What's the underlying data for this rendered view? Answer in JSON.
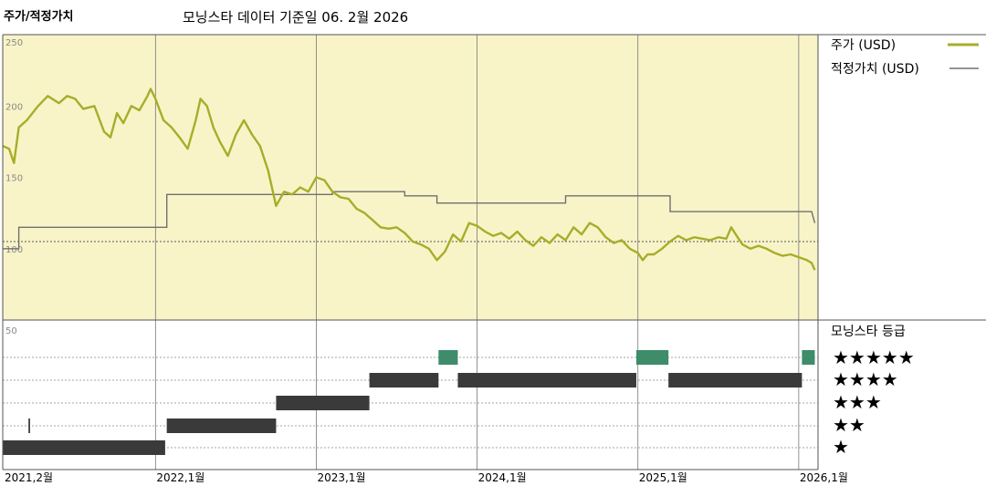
{
  "header": {
    "title": "주가/적정가치",
    "subtitle": "모닝스타 데이터 기준일 06. 2월 2026"
  },
  "legend": {
    "price_label": "주가 (USD)",
    "fair_label": "적정가치 (USD)",
    "rating_title": "모닝스타 등급",
    "star_rows": [
      "★★★★★",
      "★★★★",
      "★★★",
      "★★",
      "★"
    ]
  },
  "colors": {
    "panel_bg": "#f8f4c8",
    "price_line": "#a8ad2a",
    "fair_line": "#707070",
    "rating_dark": "#3a3a3a",
    "rating_five": "#3e8c6a",
    "grid": "#666666"
  },
  "chart_data": {
    "type": "line",
    "y_ticks": [
      "250",
      "200",
      "150",
      "100"
    ],
    "ylim": [
      50,
      250
    ],
    "reference_line": 105,
    "x_ticks": [
      {
        "label": "2021,2월",
        "t": 2021.08
      },
      {
        "label": "2022,1월",
        "t": 2022.0
      },
      {
        "label": "2023,1월",
        "t": 2023.0
      },
      {
        "label": "2024,1월",
        "t": 2024.0
      },
      {
        "label": "2025,1월",
        "t": 2025.0
      },
      {
        "label": "2026,1월",
        "t": 2026.0
      }
    ],
    "xlim": [
      2021.05,
      2026.12
    ],
    "series": [
      {
        "name": "주가 (USD)",
        "points": [
          [
            2021.05,
            172
          ],
          [
            2021.09,
            170
          ],
          [
            2021.12,
            160
          ],
          [
            2021.15,
            185
          ],
          [
            2021.2,
            190
          ],
          [
            2021.27,
            200
          ],
          [
            2021.33,
            207
          ],
          [
            2021.4,
            202
          ],
          [
            2021.45,
            207
          ],
          [
            2021.5,
            205
          ],
          [
            2021.55,
            198
          ],
          [
            2021.62,
            200
          ],
          [
            2021.68,
            182
          ],
          [
            2021.72,
            178
          ],
          [
            2021.76,
            195
          ],
          [
            2021.8,
            188
          ],
          [
            2021.85,
            200
          ],
          [
            2021.9,
            197
          ],
          [
            2021.95,
            207
          ],
          [
            2021.97,
            212
          ],
          [
            2022.0,
            205
          ],
          [
            2022.05,
            190
          ],
          [
            2022.1,
            185
          ],
          [
            2022.15,
            178
          ],
          [
            2022.2,
            170
          ],
          [
            2022.25,
            190
          ],
          [
            2022.28,
            205
          ],
          [
            2022.32,
            200
          ],
          [
            2022.36,
            185
          ],
          [
            2022.4,
            175
          ],
          [
            2022.45,
            165
          ],
          [
            2022.5,
            180
          ],
          [
            2022.55,
            190
          ],
          [
            2022.6,
            180
          ],
          [
            2022.65,
            172
          ],
          [
            2022.7,
            155
          ],
          [
            2022.75,
            130
          ],
          [
            2022.8,
            140
          ],
          [
            2022.85,
            138
          ],
          [
            2022.9,
            143
          ],
          [
            2022.95,
            140
          ],
          [
            2023.0,
            150
          ],
          [
            2023.05,
            148
          ],
          [
            2023.1,
            140
          ],
          [
            2023.15,
            136
          ],
          [
            2023.2,
            135
          ],
          [
            2023.25,
            128
          ],
          [
            2023.3,
            125
          ],
          [
            2023.35,
            120
          ],
          [
            2023.4,
            115
          ],
          [
            2023.45,
            114
          ],
          [
            2023.5,
            115
          ],
          [
            2023.55,
            111
          ],
          [
            2023.6,
            105
          ],
          [
            2023.65,
            103
          ],
          [
            2023.7,
            100
          ],
          [
            2023.75,
            92
          ],
          [
            2023.8,
            98
          ],
          [
            2023.85,
            110
          ],
          [
            2023.9,
            105
          ],
          [
            2023.95,
            118
          ],
          [
            2024.0,
            116
          ],
          [
            2024.05,
            112
          ],
          [
            2024.1,
            109
          ],
          [
            2024.15,
            111
          ],
          [
            2024.2,
            107
          ],
          [
            2024.25,
            112
          ],
          [
            2024.3,
            106
          ],
          [
            2024.35,
            102
          ],
          [
            2024.4,
            108
          ],
          [
            2024.45,
            104
          ],
          [
            2024.5,
            110
          ],
          [
            2024.55,
            106
          ],
          [
            2024.6,
            115
          ],
          [
            2024.65,
            110
          ],
          [
            2024.7,
            118
          ],
          [
            2024.75,
            115
          ],
          [
            2024.8,
            108
          ],
          [
            2024.85,
            104
          ],
          [
            2024.9,
            106
          ],
          [
            2024.95,
            100
          ],
          [
            2025.0,
            97
          ],
          [
            2025.03,
            92
          ],
          [
            2025.06,
            96
          ],
          [
            2025.1,
            96
          ],
          [
            2025.15,
            100
          ],
          [
            2025.2,
            105
          ],
          [
            2025.25,
            109
          ],
          [
            2025.3,
            106
          ],
          [
            2025.35,
            108
          ],
          [
            2025.4,
            107
          ],
          [
            2025.45,
            106
          ],
          [
            2025.5,
            108
          ],
          [
            2025.55,
            107
          ],
          [
            2025.58,
            115
          ],
          [
            2025.62,
            108
          ],
          [
            2025.65,
            103
          ],
          [
            2025.7,
            100
          ],
          [
            2025.75,
            102
          ],
          [
            2025.8,
            100
          ],
          [
            2025.85,
            97
          ],
          [
            2025.9,
            95
          ],
          [
            2025.95,
            96
          ],
          [
            2026.0,
            94
          ],
          [
            2026.05,
            92
          ],
          [
            2026.08,
            90
          ],
          [
            2026.1,
            85
          ]
        ]
      },
      {
        "name": "적정가치 (USD)",
        "points": [
          [
            2021.05,
            100
          ],
          [
            2021.15,
            100
          ],
          [
            2021.15,
            115
          ],
          [
            2022.07,
            115
          ],
          [
            2022.07,
            138
          ],
          [
            2023.1,
            138
          ],
          [
            2023.1,
            140
          ],
          [
            2023.55,
            140
          ],
          [
            2023.55,
            137
          ],
          [
            2023.75,
            137
          ],
          [
            2023.75,
            132
          ],
          [
            2024.55,
            132
          ],
          [
            2024.55,
            137
          ],
          [
            2025.2,
            137
          ],
          [
            2025.2,
            126
          ],
          [
            2026.08,
            126
          ],
          [
            2026.1,
            118
          ]
        ]
      }
    ],
    "ratings": {
      "stars_axis_tick": "50",
      "rows": [
        "★★★★★",
        "★★★★",
        "★★★",
        "★★",
        "★"
      ],
      "segments": [
        {
          "stars": 1,
          "start": 2021.05,
          "end": 2022.06
        },
        {
          "stars": 2,
          "start": 2021.21,
          "end": 2021.22
        },
        {
          "stars": 2,
          "start": 2022.07,
          "end": 2022.75
        },
        {
          "stars": 3,
          "start": 2022.75,
          "end": 2023.33
        },
        {
          "stars": 4,
          "start": 2023.33,
          "end": 2023.76
        },
        {
          "stars": 5,
          "start": 2023.76,
          "end": 2023.88
        },
        {
          "stars": 4,
          "start": 2023.88,
          "end": 2024.99
        },
        {
          "stars": 5,
          "start": 2024.99,
          "end": 2025.19
        },
        {
          "stars": 4,
          "start": 2025.19,
          "end": 2026.02
        },
        {
          "stars": 5,
          "start": 2026.02,
          "end": 2026.1
        }
      ]
    }
  }
}
